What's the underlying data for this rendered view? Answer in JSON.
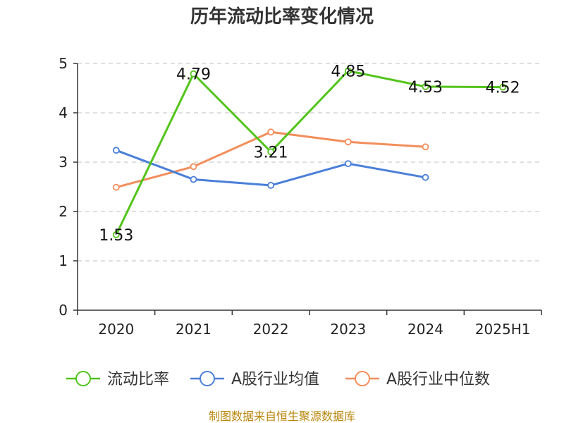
{
  "chart_data": {
    "type": "line",
    "title": "历年流动比率变化情况",
    "categories": [
      "2020",
      "2021",
      "2022",
      "2023",
      "2024",
      "2025H1"
    ],
    "ylim": [
      0,
      5
    ],
    "yticks": [
      "0",
      "1",
      "2",
      "3",
      "4",
      "5"
    ],
    "grid": true,
    "legend_position": "bottom",
    "series": [
      {
        "name": "流动比率",
        "color": "#52c41a",
        "values": [
          1.53,
          4.79,
          3.21,
          4.85,
          4.53,
          4.52
        ],
        "labels": [
          "1.53",
          "4.79",
          "3.21",
          "4.85",
          "4.53",
          "4.52"
        ]
      },
      {
        "name": "A股行业均值",
        "color": "#4a7fd9",
        "values": [
          3.24,
          2.65,
          2.53,
          2.97,
          2.69,
          null
        ]
      },
      {
        "name": "A股行业中位数",
        "color": "#f28e5b",
        "values": [
          2.49,
          2.91,
          3.61,
          3.41,
          3.31,
          null
        ]
      }
    ],
    "source": "制图数据来自恒生聚源数据库"
  }
}
